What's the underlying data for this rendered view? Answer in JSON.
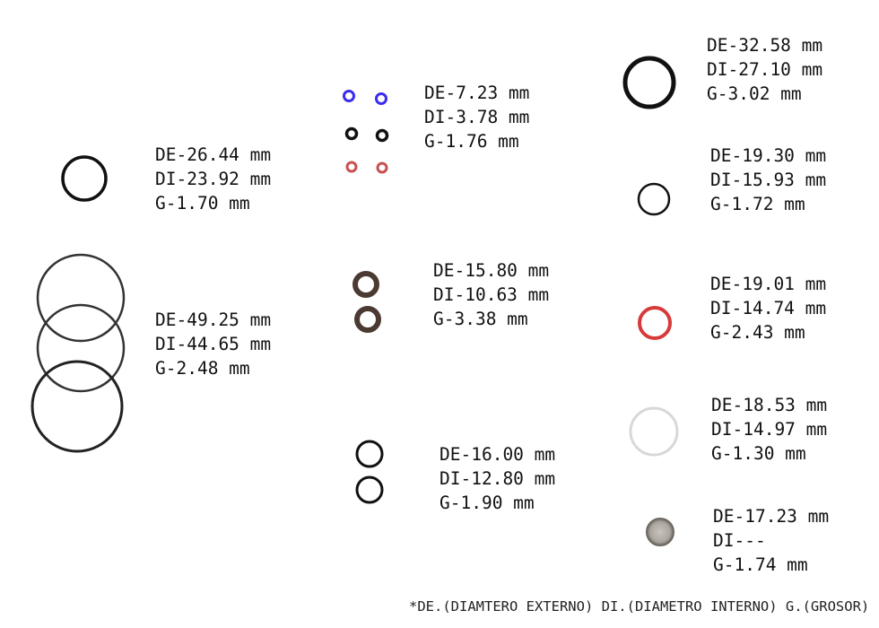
{
  "specs": [
    {
      "id": "a",
      "de": "DE-26.44 mm",
      "di": "DI-23.92 mm",
      "g": "G-1.70 mm",
      "ring_color": "#111111"
    },
    {
      "id": "b",
      "de": "DE-7.23 mm",
      "di": "DI-3.78 mm",
      "g": "G-1.76 mm",
      "ring_colors": [
        "#3a2cf0",
        "#111111",
        "#c85050"
      ]
    },
    {
      "id": "c",
      "de": "DE-49.25 mm",
      "di": "DI-44.65 mm",
      "g": "G-2.48 mm",
      "ring_color": "#333333"
    },
    {
      "id": "d",
      "de": "DE-15.80 mm",
      "di": "DI-10.63 mm",
      "g": "G-3.38 mm",
      "ring_color": "#4a3a32"
    },
    {
      "id": "e",
      "de": "DE-16.00 mm",
      "di": "DI-12.80 mm",
      "g": "G-1.90 mm",
      "ring_color": "#111111"
    },
    {
      "id": "f",
      "de": "DE-32.58 mm",
      "di": "DI-27.10 mm",
      "g": "G-3.02 mm",
      "ring_color": "#111111"
    },
    {
      "id": "g",
      "de": "DE-19.30 mm",
      "di": "DI-15.93 mm",
      "g": "G-1.72 mm",
      "ring_color": "#111111"
    },
    {
      "id": "h",
      "de": "DE-19.01 mm",
      "di": "DI-14.74 mm",
      "g": "G-2.43 mm",
      "ring_color": "#d83a3a"
    },
    {
      "id": "i",
      "de": "DE-18.53 mm",
      "di": "DI-14.97 mm",
      "g": "G-1.30 mm",
      "ring_color": "#d8d8d8"
    },
    {
      "id": "j",
      "de": "DE-17.23 mm",
      "di": "DI---",
      "g": "G-1.74 mm",
      "ring_color": "#8a8580"
    }
  ],
  "footnote": "*DE.(DIAMTERO EXTERNO) DI.(DIAMETRO INTERNO) G.(GROSOR)"
}
